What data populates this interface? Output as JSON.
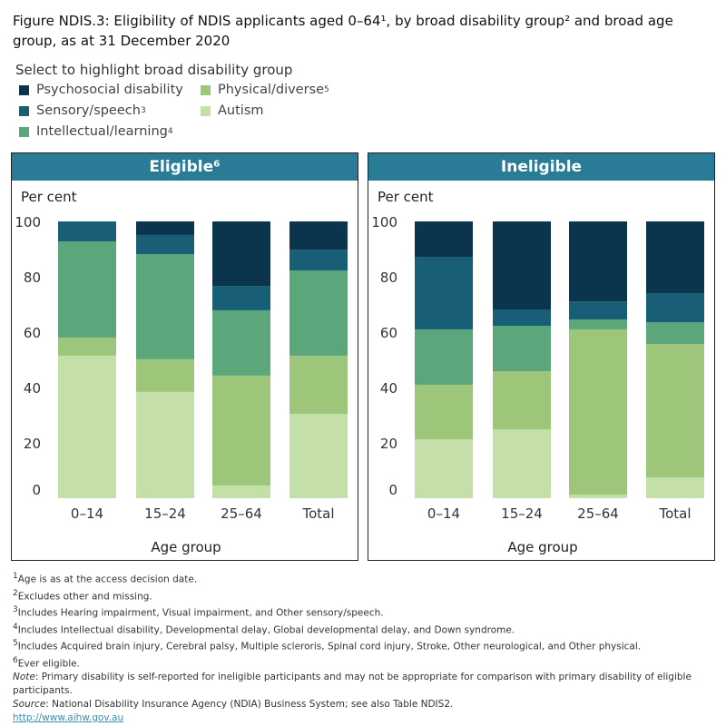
{
  "title": "Figure NDIS.3: Eligibility of NDIS applicants aged 0–64¹, by broad disability group² and broad age group, as at 31 December 2020",
  "legend": {
    "title": "Select to highlight broad disability group",
    "items": [
      {
        "label": "Psychosocial disability",
        "sup": "",
        "color": "#0b354d"
      },
      {
        "label": "Sensory/speech",
        "sup": "3",
        "color": "#175e76"
      },
      {
        "label": "Intellectual/learning",
        "sup": "4",
        "color": "#5ba67a"
      },
      {
        "label": "Physical/diverse",
        "sup": "5",
        "color": "#9dc67a"
      },
      {
        "label": "Autism",
        "sup": "",
        "color": "#c4e0a8"
      }
    ]
  },
  "chart_data": [
    {
      "type": "bar",
      "stacked": true,
      "title": "Eligible⁶",
      "ylabel": "Per cent",
      "xlabel": "Age group",
      "ylim": [
        0,
        100
      ],
      "yticks": [
        0,
        20,
        40,
        60,
        80,
        100
      ],
      "categories": [
        "0–14",
        "15–24",
        "25–64",
        "Total"
      ],
      "series": [
        {
          "name": "Autism",
          "values": [
            51.5,
            38.4,
            4.6,
            30.5
          ]
        },
        {
          "name": "Physical/diverse",
          "values": [
            6.5,
            11.8,
            39.7,
            21.0
          ]
        },
        {
          "name": "Intellectual/learning",
          "values": [
            34.8,
            38.0,
            23.6,
            30.8
          ]
        },
        {
          "name": "Sensory/speech",
          "values": [
            7.2,
            6.9,
            8.8,
            7.5
          ]
        },
        {
          "name": "Psychosocial disability",
          "values": [
            0,
            4.9,
            23.3,
            10.2
          ]
        }
      ]
    },
    {
      "type": "bar",
      "stacked": true,
      "title": "Ineligible",
      "ylabel": "Per cent",
      "xlabel": "Age group",
      "ylim": [
        0,
        100
      ],
      "yticks": [
        0,
        20,
        40,
        60,
        80,
        100
      ],
      "categories": [
        "0–14",
        "15–24",
        "25–64",
        "Total"
      ],
      "series": [
        {
          "name": "Autism",
          "values": [
            21.3,
            24.9,
            1.3,
            7.5
          ]
        },
        {
          "name": "Physical/diverse",
          "values": [
            19.7,
            21.0,
            59.7,
            48.2
          ]
        },
        {
          "name": "Intellectual/learning",
          "values": [
            20.0,
            16.4,
            3.6,
            7.9
          ]
        },
        {
          "name": "Sensory/speech",
          "values": [
            26.2,
            5.9,
            6.5,
            10.5
          ]
        },
        {
          "name": "Psychosocial disability",
          "values": [
            12.8,
            31.8,
            28.9,
            25.9
          ]
        }
      ]
    }
  ],
  "notes": [
    {
      "sup": "1",
      "text": "Age is as at the access decision date."
    },
    {
      "sup": "2",
      "text": "Excludes other and missing."
    },
    {
      "sup": "3",
      "text": "Includes Hearing impairment, Visual impairment, and Other sensory/speech."
    },
    {
      "sup": "4",
      "text": "Includes Intellectual disability, Developmental delay, Global developmental delay, and Down syndrome."
    },
    {
      "sup": "5",
      "text": "Includes Acquired brain injury, Cerebral palsy, Multiple scleroris, Spinal cord injury, Stroke, Other neurological, and Other physical."
    },
    {
      "sup": "6",
      "text": "Ever eligible."
    }
  ],
  "note": {
    "label": "Note",
    "text": ": Primary disability is self-reported for ineligible participants and may not be appropriate for comparison with primary disability of eligible participants."
  },
  "source": {
    "label": "Source",
    "text": ": National Disability Insurance Agency (NDIA) Business System; see also Table NDIS2."
  },
  "link": "http://www.aihw.gov.au"
}
